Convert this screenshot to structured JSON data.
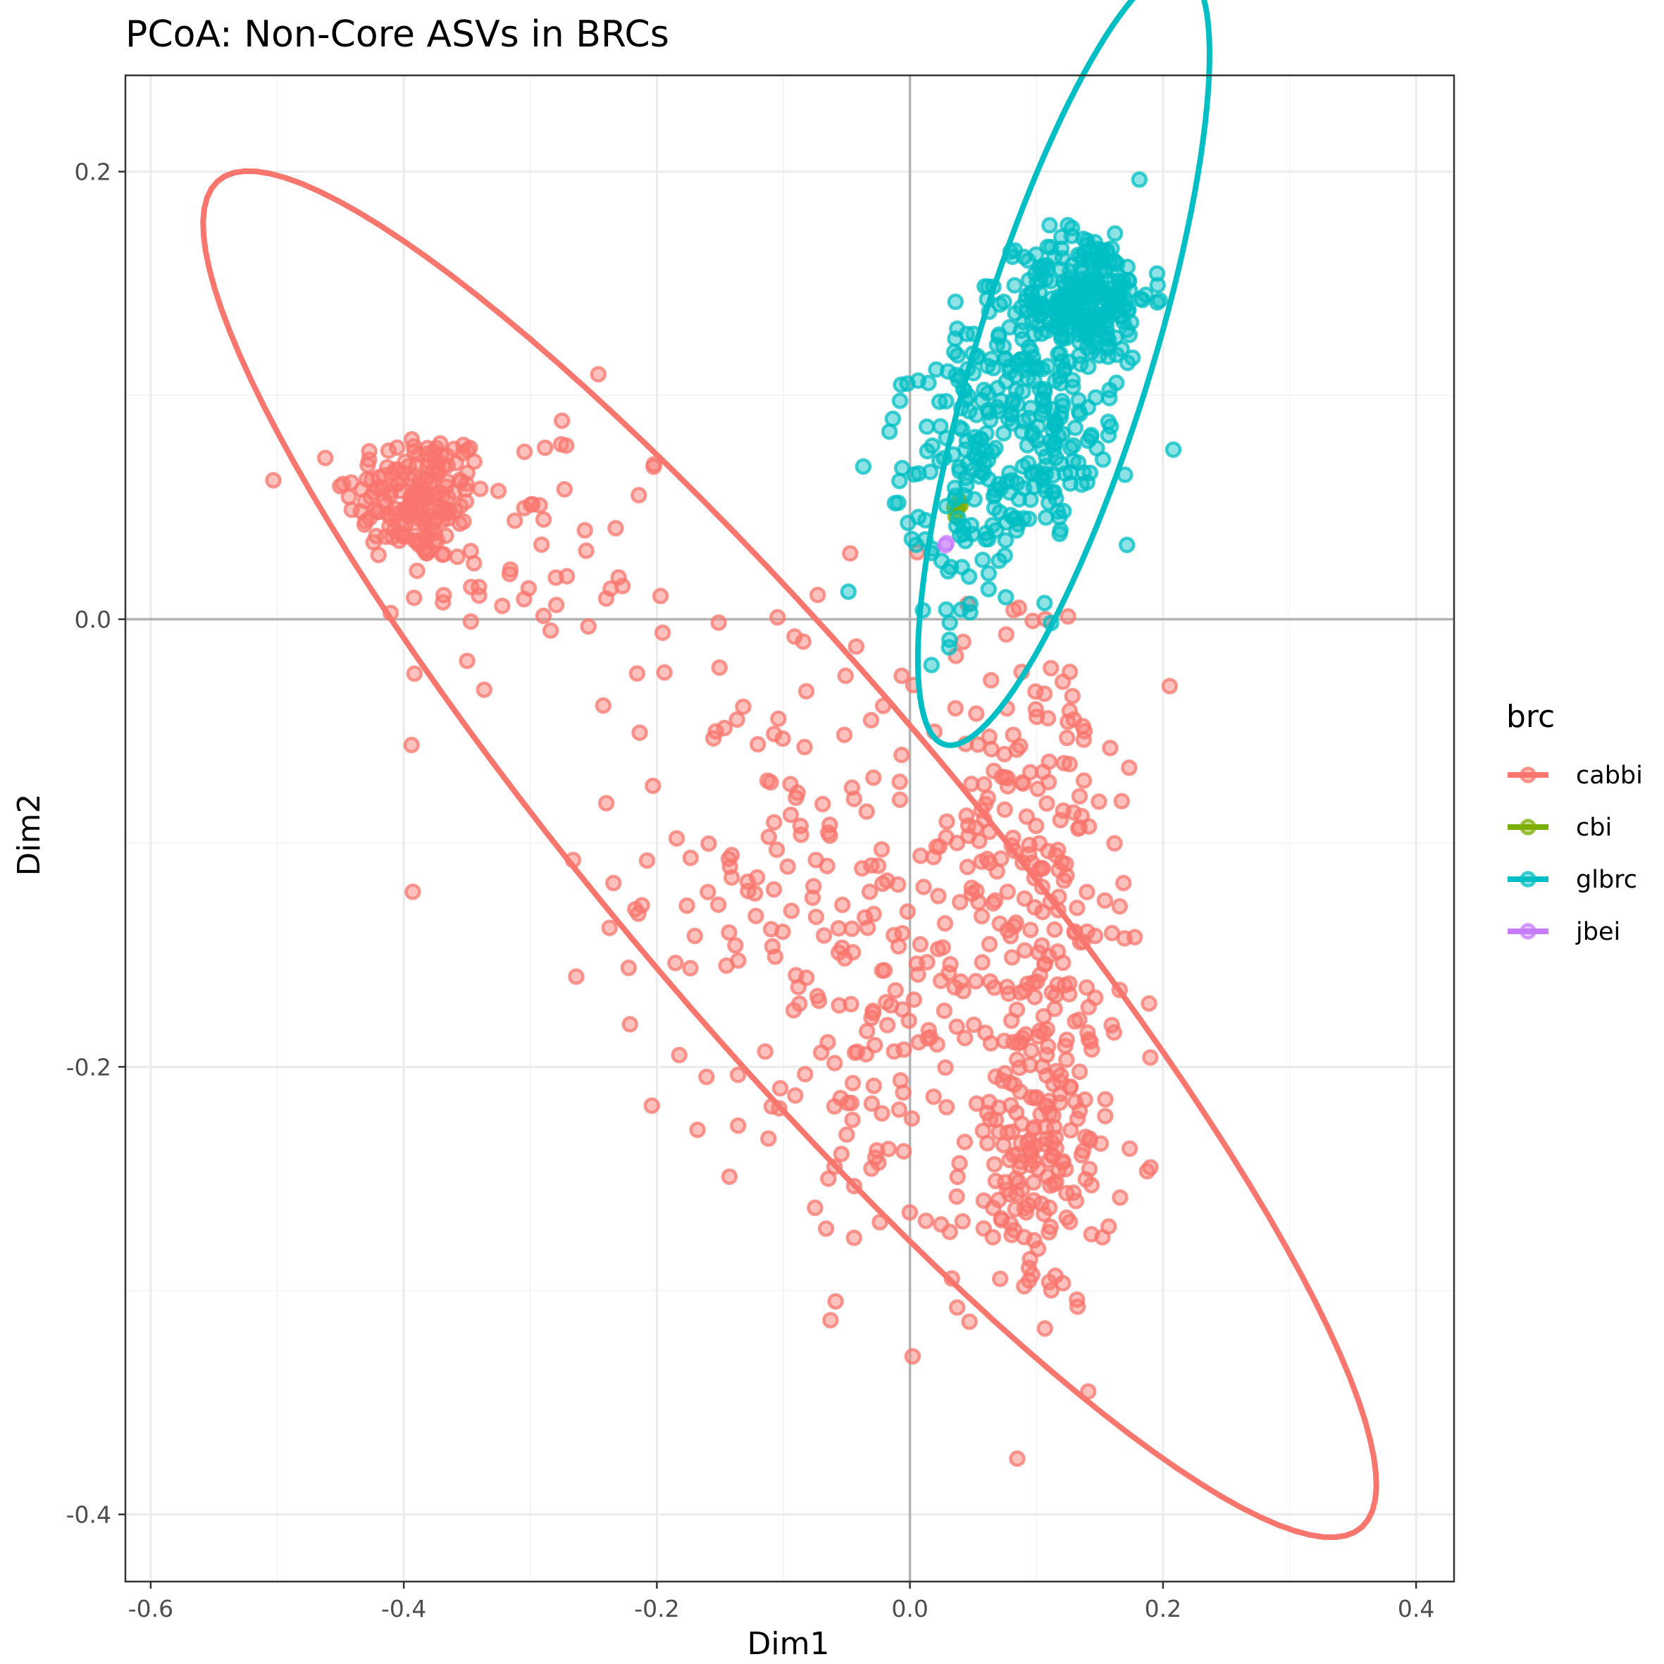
{
  "chart_data": {
    "type": "scatter",
    "title": "PCoA: Non-Core ASVs in BRCs",
    "xlabel": "Dim1",
    "ylabel": "Dim2",
    "xlim": [
      -0.62,
      0.43
    ],
    "ylim": [
      -0.43,
      0.243
    ],
    "x_ticks": [
      -0.6,
      -0.4,
      -0.2,
      0.0,
      0.2,
      0.4
    ],
    "x_tick_labels": [
      "-0.6",
      "-0.4",
      "-0.2",
      "0.0",
      "0.2",
      "0.4"
    ],
    "y_ticks": [
      -0.4,
      -0.2,
      0.0,
      0.2
    ],
    "y_tick_labels": [
      "-0.4",
      "-0.2",
      "0.0",
      "0.2"
    ],
    "reference_lines": {
      "x": 0,
      "y": 0
    },
    "grid": true,
    "legend": {
      "title": "brc",
      "position": "right",
      "entries": [
        "cabbi",
        "cbi",
        "glbrc",
        "jbei"
      ]
    },
    "colors": {
      "cabbi": "#F8766D",
      "cbi": "#7CAE00",
      "glbrc": "#00BFC4",
      "jbei": "#C77CFF"
    },
    "series": [
      {
        "name": "cabbi",
        "clusters": [
          {
            "center": [
              -0.39,
              0.055
            ],
            "sd": [
              0.028,
              0.015
            ],
            "count": 170
          },
          {
            "center": [
              -0.3,
              0.025
            ],
            "sd": [
              0.06,
              0.035
            ],
            "count": 60
          },
          {
            "center": [
              -0.09,
              -0.11
            ],
            "sd": [
              0.07,
              0.06
            ],
            "count": 150
          },
          {
            "center": [
              -0.03,
              -0.2
            ],
            "sd": [
              0.035,
              0.045
            ],
            "count": 80
          },
          {
            "center": [
              0.1,
              -0.09
            ],
            "sd": [
              0.035,
              0.045
            ],
            "count": 130
          },
          {
            "center": [
              0.1,
              -0.24
            ],
            "sd": [
              0.03,
              0.035
            ],
            "count": 170
          },
          {
            "center": [
              0.1,
              -0.17
            ],
            "sd": [
              0.04,
              0.04
            ],
            "count": 80
          }
        ],
        "ellipse": {
          "center": [
            -0.095,
            -0.105
          ],
          "semi_axes": [
            0.546,
            0.1
          ],
          "angle_deg": -32.5
        }
      },
      {
        "name": "cbi",
        "points": [
          [
            0.036,
            0.046
          ],
          [
            0.038,
            0.05
          ],
          [
            0.039,
            0.053
          ],
          [
            0.037,
            0.048
          ],
          [
            0.04,
            0.051
          ],
          [
            0.035,
            0.05
          ]
        ]
      },
      {
        "name": "glbrc",
        "clusters": [
          {
            "center": [
              0.14,
              0.145
            ],
            "sd": [
              0.025,
              0.015
            ],
            "count": 220
          },
          {
            "center": [
              0.1,
              0.11
            ],
            "sd": [
              0.035,
              0.025
            ],
            "count": 180
          },
          {
            "center": [
              0.08,
              0.065
            ],
            "sd": [
              0.04,
              0.025
            ],
            "count": 120
          },
          {
            "center": [
              0.03,
              0.05
            ],
            "sd": [
              0.03,
              0.03
            ],
            "count": 50
          }
        ],
        "ellipse": {
          "center": [
            0.1215,
            0.1172
          ],
          "semi_axes": [
            0.1985,
            0.0633
          ],
          "angle_deg": 59.2
        }
      },
      {
        "name": "jbei",
        "points": [
          [
            0.028,
            0.033
          ],
          [
            0.029,
            0.034
          ]
        ]
      }
    ]
  }
}
